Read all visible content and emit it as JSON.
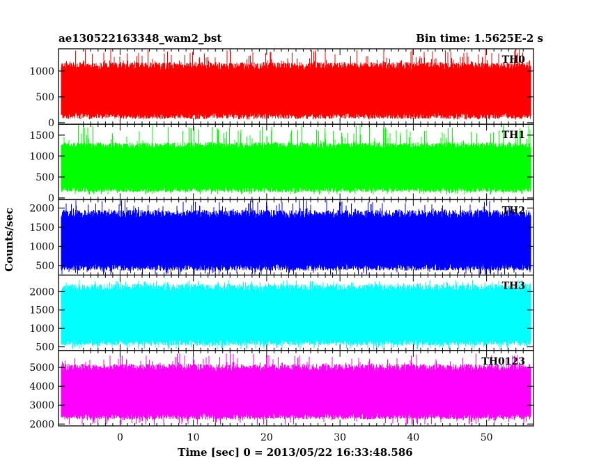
{
  "header": {
    "title": "ae130522163348_wam2_bst",
    "bin_time": "Bin time: 1.5625E-2 s"
  },
  "chart_data": {
    "type": "line",
    "title": "ae130522163348_wam2_bst",
    "xlabel": "Time [sec] 0 = 2013/05/22 16:33:48.586",
    "ylabel": "Counts/sec",
    "xlim": [
      -8.4,
      56.4
    ],
    "data_x_range": [
      -8.0,
      56.0
    ],
    "x_ticks": [
      0,
      10,
      20,
      30,
      40,
      50
    ],
    "x_tick_labels": [
      "0",
      "10",
      "20",
      "30",
      "40",
      "50"
    ],
    "grid": false,
    "panels": [
      {
        "name": "TH0",
        "color": "#ff0000",
        "ylim": [
          -30,
          1430
        ],
        "y_ticks": [
          0,
          500,
          1000
        ],
        "y_tick_labels": [
          "0",
          "500",
          "1000"
        ],
        "typical_band": [
          130,
          1100
        ],
        "extreme_band": [
          60,
          1430
        ]
      },
      {
        "name": "TH1",
        "color": "#00ff00",
        "ylim": [
          -40,
          1760
        ],
        "y_ticks": [
          0,
          500,
          1000,
          1500
        ],
        "y_tick_labels": [
          "0",
          "500",
          "1000",
          "1500"
        ],
        "typical_band": [
          200,
          1250
        ],
        "extreme_band": [
          80,
          1760
        ]
      },
      {
        "name": "TH2",
        "color": "#0000ff",
        "ylim": [
          250,
          2220
        ],
        "y_ticks": [
          500,
          1000,
          1500,
          2000
        ],
        "y_tick_labels": [
          "500",
          "1000",
          "1500",
          "2000"
        ],
        "typical_band": [
          450,
          1850
        ],
        "extreme_band": [
          250,
          2220
        ]
      },
      {
        "name": "TH3",
        "color": "#00ffff",
        "ylim": [
          400,
          2450
        ],
        "y_ticks": [
          500,
          1000,
          1500,
          2000
        ],
        "y_tick_labels": [
          "500",
          "1000",
          "1500",
          "2000"
        ],
        "typical_band": [
          620,
          2100
        ],
        "extreme_band": [
          420,
          2320
        ]
      },
      {
        "name": "TH0123",
        "color": "#ff00ff",
        "ylim": [
          1900,
          5900
        ],
        "y_ticks": [
          2000,
          3000,
          4000,
          5000
        ],
        "y_tick_labels": [
          "2000",
          "3000",
          "4000",
          "5000"
        ],
        "typical_band": [
          2400,
          5000
        ],
        "extreme_band": [
          1950,
          5750
        ]
      }
    ]
  }
}
